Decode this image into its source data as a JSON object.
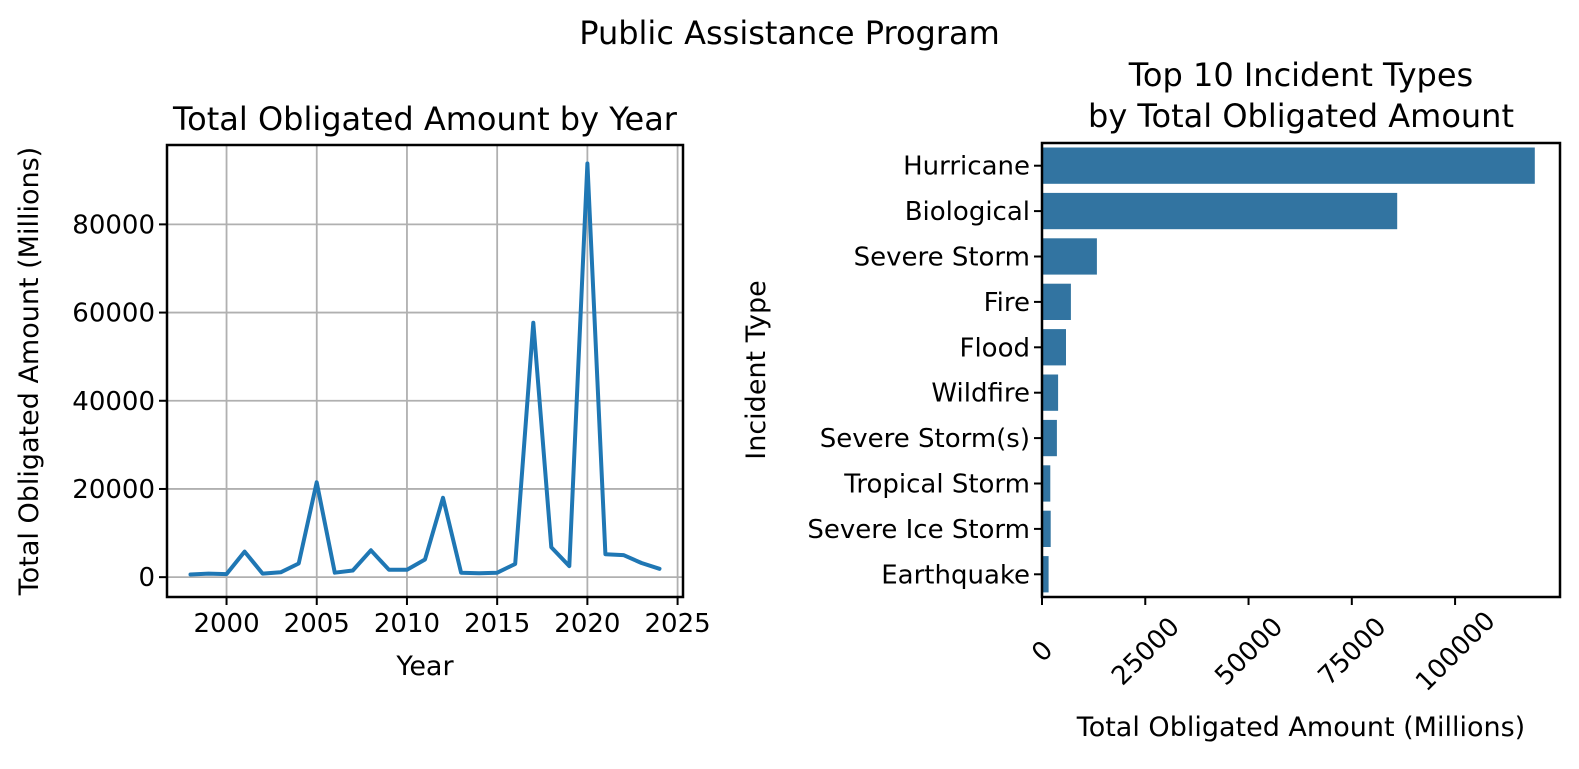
{
  "page": {
    "suptitle": "Public Assistance Program",
    "background": "#ffffff",
    "text_color": "#000000",
    "grid_color": "#b0b0b0"
  },
  "chart_data": [
    {
      "type": "line",
      "title": "Total Obligated Amount by Year",
      "xlabel": "Year",
      "ylabel": "Total Obligated Amount (Millions)",
      "line_color": "#1f77b4",
      "grid": true,
      "xlim": [
        1996.7,
        2025.3
      ],
      "ylim": [
        -4500,
        98000
      ],
      "xticks": [
        2000,
        2005,
        2010,
        2015,
        2020,
        2025
      ],
      "yticks": [
        0,
        20000,
        40000,
        60000,
        80000
      ],
      "x": [
        1998,
        1999,
        2000,
        2001,
        2002,
        2003,
        2004,
        2005,
        2006,
        2007,
        2008,
        2009,
        2010,
        2011,
        2012,
        2013,
        2014,
        2015,
        2016,
        2017,
        2018,
        2019,
        2020,
        2021,
        2022,
        2023,
        2024
      ],
      "values": [
        600,
        800,
        700,
        5800,
        800,
        1100,
        3100,
        21500,
        1000,
        1500,
        6100,
        1700,
        1700,
        4000,
        18000,
        1000,
        900,
        1000,
        3000,
        57700,
        6800,
        2500,
        93800,
        5200,
        5000,
        3200,
        1900
      ]
    },
    {
      "type": "bar",
      "orientation": "horizontal",
      "title": "Top 10 Incident Types\nby Total Obligated Amount",
      "xlabel": "Total Obligated Amount (Millions)",
      "ylabel": "Incident Type",
      "bar_color": "#3274a1",
      "grid": false,
      "xlim": [
        0,
        125400
      ],
      "xticks": [
        0,
        25000,
        50000,
        75000,
        100000
      ],
      "xtick_rotation": 45,
      "categories": [
        "Hurricane",
        "Biological",
        "Severe Storm",
        "Fire",
        "Flood",
        "Wildfire",
        "Severe Storm(s)",
        "Tropical Storm",
        "Severe Ice Storm",
        "Earthquake"
      ],
      "values": [
        119300,
        86000,
        13300,
        7000,
        5800,
        3900,
        3600,
        2000,
        2100,
        1600
      ]
    }
  ]
}
